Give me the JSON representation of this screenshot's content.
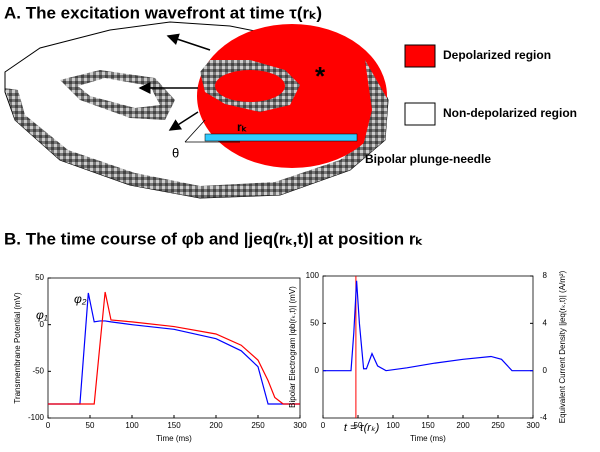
{
  "panel_a": {
    "title": "A. The excitation wavefront at time τ(rₖ)",
    "legend": [
      {
        "label": "Depolarized region",
        "color": "#ff0000"
      },
      {
        "label": "Non-depolarized region",
        "color": "#ffffff"
      }
    ],
    "theta": "θ",
    "rk": "rₖ",
    "star": "*",
    "needle": "Bipolar plunge-needle",
    "needle_color": "#33ccff"
  },
  "panel_b": {
    "title": "B. The time course of φb  and |jeq(rₖ,t)| at position rₖ"
  },
  "chart_data": [
    {
      "type": "line",
      "y_label": "Transmembrane Potential (mV)",
      "x_label": "Time (ms)",
      "x": [
        0,
        38,
        48,
        55,
        62,
        68,
        75,
        100,
        150,
        200,
        230,
        250,
        262,
        270,
        280,
        300
      ],
      "series": [
        {
          "name": "φ₁",
          "color": "#0000ff",
          "values": [
            -85,
            -85,
            34,
            3,
            4,
            4,
            3,
            0,
            -5,
            -15,
            -28,
            -45,
            -85,
            -85,
            -85,
            -85
          ]
        },
        {
          "name": "φ₂",
          "color": "#ff0000",
          "values": [
            -85,
            -85,
            -85,
            -85,
            -20,
            35,
            5,
            3,
            -2,
            -10,
            -22,
            -38,
            -60,
            -78,
            -85,
            -85
          ]
        }
      ],
      "xlim": [
        0,
        300
      ],
      "xticks": [
        0,
        50,
        100,
        150,
        200,
        250,
        300
      ],
      "ylim": [
        -100,
        50
      ],
      "yticks": [
        -100,
        -50,
        0,
        50
      ]
    },
    {
      "type": "line",
      "y_label": "Bipolar Electrogram |φb(rₖ,t)| (mV)",
      "y2_label": "Equivalent Current Density |jeq(rₖ,t)| (A/m²)",
      "x_label": "Time (ms)",
      "x": [
        0,
        40,
        44,
        48,
        52,
        58,
        62,
        70,
        78,
        90,
        120,
        160,
        200,
        240,
        255,
        270,
        300
      ],
      "series": [
        {
          "name": "Bipolar Electrogram",
          "color": "#0000ff",
          "values": [
            0,
            0,
            40,
            95,
            50,
            2,
            2,
            18,
            5,
            0,
            3,
            8,
            12,
            15,
            12,
            0,
            0
          ]
        }
      ],
      "marker": {
        "x": 47,
        "label": "t = τ(rₖ)",
        "color": "#ff0000"
      },
      "xlim": [
        0,
        300
      ],
      "xticks": [
        0,
        50,
        100,
        150,
        200,
        250,
        300
      ],
      "ylim": [
        -50,
        100
      ],
      "yticks": [
        0,
        50,
        100
      ],
      "y2lim": [
        -4,
        8
      ],
      "y2ticks": [
        -4,
        0,
        4,
        8
      ]
    }
  ]
}
